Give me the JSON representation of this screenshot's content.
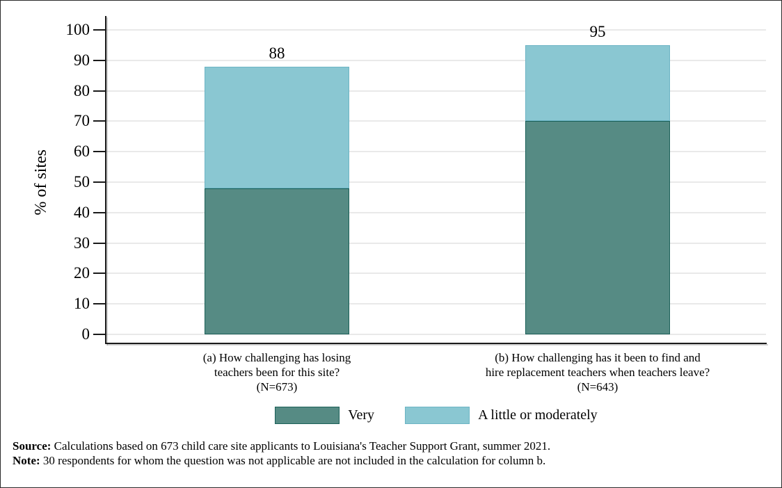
{
  "chart_data": {
    "type": "bar",
    "stacked": true,
    "title": "",
    "xlabel": "",
    "ylabel": "% of sites",
    "ylim": [
      0,
      100
    ],
    "yticks": [
      0,
      10,
      20,
      30,
      40,
      50,
      60,
      70,
      80,
      90,
      100
    ],
    "grid": "horizontal",
    "legend_position": "bottom-center",
    "categories": [
      {
        "label_lines": [
          "(a) How challenging has losing",
          "teachers been for this site?",
          "(N=673)"
        ],
        "n": 673
      },
      {
        "label_lines": [
          "(b) How challenging has it been to find and",
          "hire replacement teachers when teachers leave?",
          "(N=643)"
        ],
        "n": 643
      }
    ],
    "series": [
      {
        "name": "Very",
        "values": [
          48,
          70
        ],
        "fill": "#568b84",
        "border": "#1a6058"
      },
      {
        "name": "A little or moderately",
        "values": [
          40,
          25
        ],
        "fill": "#8ac7d2",
        "border": "#6cb4c4"
      }
    ],
    "totals": [
      88,
      95
    ],
    "total_labels": [
      "88",
      "95"
    ]
  },
  "colors": {
    "background": "#ffffff",
    "gridline": "#e9e9e9",
    "axis": "#1a1a1a",
    "very_fill": "#568b84",
    "very_border": "#1a6058",
    "little_fill": "#8ac7d2",
    "little_border": "#6cb4c4"
  },
  "footer": {
    "source_label": "Source:",
    "source_text": " Calculations based on 673 child care site applicants to Louisiana's Teacher Support Grant, summer 2021.",
    "note_label": "Note:",
    "note_text": " 30 respondents for whom the question was not applicable are not included in the calculation for column b."
  }
}
